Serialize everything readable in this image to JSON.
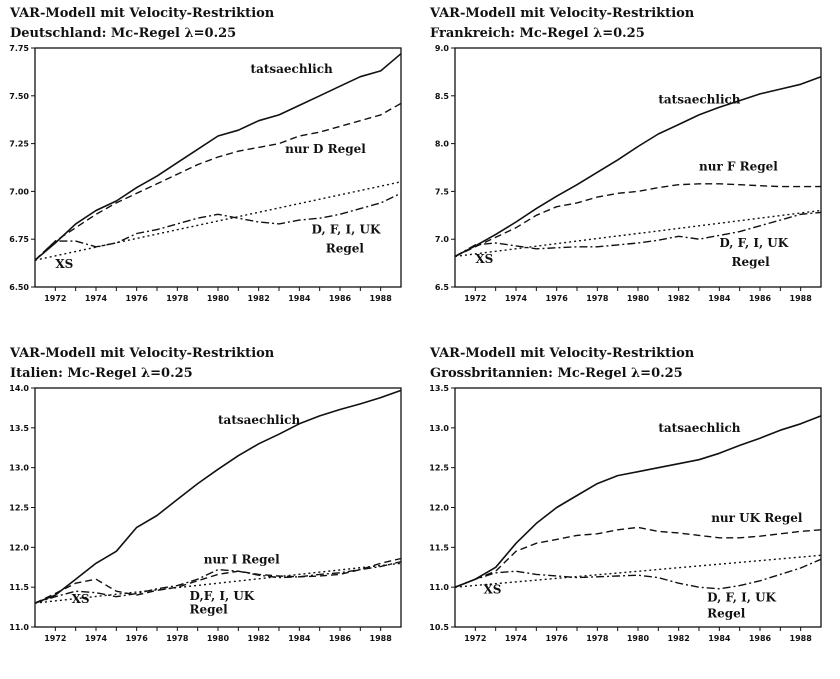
{
  "chart_data": [
    {
      "type": "line",
      "title": "VAR-Modell mit Velocity-Restriktion",
      "subtitle": "Deutschland: Mc-Regel λ=0.25",
      "xlim": [
        1971,
        1989
      ],
      "ylim": [
        6.5,
        7.75
      ],
      "xticks": [
        1972,
        1974,
        1976,
        1978,
        1980,
        1982,
        1984,
        1986,
        1988
      ],
      "yticks": [
        6.5,
        6.75,
        7.0,
        7.25,
        7.5,
        7.75
      ],
      "ytick_labels": [
        "6.50",
        "6.75",
        "7.00",
        "7.25",
        "7.50",
        "7.75"
      ],
      "grid": false,
      "annotations": [
        {
          "text": "tatsaechlich",
          "x": 1981.6,
          "y": 7.62
        },
        {
          "text": "nur D Regel",
          "x": 1983.3,
          "y": 7.2
        },
        {
          "text": "D, F, I, UK",
          "x": 1984.6,
          "y": 6.78
        },
        {
          "text": "Regel",
          "x": 1985.3,
          "y": 6.68
        },
        {
          "text": "XS",
          "x": 1972.0,
          "y": 6.6
        }
      ],
      "series": [
        {
          "style": "solid",
          "x": [
            1971,
            1972,
            1973,
            1974,
            1975,
            1976,
            1977,
            1978,
            1979,
            1980,
            1981,
            1982,
            1983,
            1984,
            1985,
            1986,
            1987,
            1988,
            1989
          ],
          "y": [
            6.64,
            6.73,
            6.83,
            6.9,
            6.95,
            7.02,
            7.08,
            7.15,
            7.22,
            7.29,
            7.32,
            7.37,
            7.4,
            7.45,
            7.5,
            7.55,
            7.6,
            7.63,
            7.72
          ]
        },
        {
          "style": "dashed",
          "x": [
            1971,
            1972,
            1973,
            1974,
            1975,
            1976,
            1977,
            1978,
            1979,
            1980,
            1981,
            1982,
            1983,
            1984,
            1985,
            1986,
            1987,
            1988,
            1989
          ],
          "y": [
            6.64,
            6.74,
            6.81,
            6.88,
            6.94,
            6.99,
            7.04,
            7.09,
            7.14,
            7.18,
            7.21,
            7.23,
            7.25,
            7.29,
            7.31,
            7.34,
            7.37,
            7.4,
            7.46
          ]
        },
        {
          "style": "dotted",
          "x": [
            1971,
            1989
          ],
          "y": [
            6.64,
            7.05
          ]
        },
        {
          "style": "dashdot",
          "x": [
            1971,
            1972,
            1973,
            1974,
            1975,
            1976,
            1977,
            1978,
            1979,
            1980,
            1981,
            1982,
            1983,
            1984,
            1985,
            1986,
            1987,
            1988,
            1989
          ],
          "y": [
            6.64,
            6.74,
            6.74,
            6.71,
            6.73,
            6.78,
            6.8,
            6.83,
            6.86,
            6.88,
            6.86,
            6.84,
            6.83,
            6.85,
            6.86,
            6.88,
            6.91,
            6.94,
            6.99
          ]
        }
      ]
    },
    {
      "type": "line",
      "title": "VAR-Modell mit Velocity-Restriktion",
      "subtitle": "Frankreich: Mc-Regel λ=0.25",
      "xlim": [
        1971,
        1989
      ],
      "ylim": [
        6.5,
        9.0
      ],
      "xticks": [
        1972,
        1974,
        1976,
        1978,
        1980,
        1982,
        1984,
        1986,
        1988
      ],
      "yticks": [
        6.5,
        7.0,
        7.5,
        8.0,
        8.5,
        9.0
      ],
      "ytick_labels": [
        "6.5",
        "7.0",
        "7.5",
        "8.0",
        "8.5",
        "9.0"
      ],
      "grid": false,
      "annotations": [
        {
          "text": "tatsaechlich",
          "x": 1981.0,
          "y": 8.42
        },
        {
          "text": "nur F Regel",
          "x": 1983.0,
          "y": 7.72
        },
        {
          "text": "D, F, I, UK",
          "x": 1984.0,
          "y": 6.92
        },
        {
          "text": "Regel",
          "x": 1984.6,
          "y": 6.72
        },
        {
          "text": "XS",
          "x": 1972.0,
          "y": 6.75
        }
      ],
      "series": [
        {
          "style": "solid",
          "x": [
            1971,
            1972,
            1973,
            1974,
            1975,
            1976,
            1977,
            1978,
            1979,
            1980,
            1981,
            1982,
            1983,
            1984,
            1985,
            1986,
            1987,
            1988,
            1989
          ],
          "y": [
            6.82,
            6.93,
            7.05,
            7.18,
            7.32,
            7.45,
            7.57,
            7.7,
            7.83,
            7.97,
            8.1,
            8.2,
            8.3,
            8.38,
            8.45,
            8.52,
            8.57,
            8.62,
            8.7
          ]
        },
        {
          "style": "dashed",
          "x": [
            1971,
            1972,
            1973,
            1974,
            1975,
            1976,
            1977,
            1978,
            1979,
            1980,
            1981,
            1982,
            1983,
            1984,
            1985,
            1986,
            1987,
            1988,
            1989
          ],
          "y": [
            6.82,
            6.92,
            7.02,
            7.12,
            7.25,
            7.34,
            7.38,
            7.44,
            7.48,
            7.5,
            7.54,
            7.57,
            7.58,
            7.58,
            7.57,
            7.56,
            7.55,
            7.55,
            7.55
          ]
        },
        {
          "style": "dotted",
          "x": [
            1971,
            1989
          ],
          "y": [
            6.82,
            7.3
          ]
        },
        {
          "style": "dashdot",
          "x": [
            1971,
            1972,
            1973,
            1974,
            1975,
            1976,
            1977,
            1978,
            1979,
            1980,
            1981,
            1982,
            1983,
            1984,
            1985,
            1986,
            1987,
            1988,
            1989
          ],
          "y": [
            6.82,
            6.94,
            6.96,
            6.93,
            6.9,
            6.91,
            6.92,
            6.92,
            6.94,
            6.96,
            6.99,
            7.03,
            7.0,
            7.04,
            7.08,
            7.14,
            7.2,
            7.26,
            7.28
          ]
        }
      ]
    },
    {
      "type": "line",
      "title": "VAR-Modell mit Velocity-Restriktion",
      "subtitle": "Italien: Mc-Regel   λ=0.25",
      "xlim": [
        1971,
        1989
      ],
      "ylim": [
        11.0,
        14.0
      ],
      "xticks": [
        1972,
        1974,
        1976,
        1978,
        1980,
        1982,
        1984,
        1986,
        1988
      ],
      "yticks": [
        11.0,
        11.5,
        12.0,
        12.5,
        13.0,
        13.5,
        14.0
      ],
      "ytick_labels": [
        "11.0",
        "11.5",
        "12.0",
        "12.5",
        "13.0",
        "13.5",
        "14.0"
      ],
      "grid": false,
      "annotations": [
        {
          "text": "tatsaechlich",
          "x": 1980.0,
          "y": 13.55
        },
        {
          "text": "nur I Regel",
          "x": 1979.3,
          "y": 11.8
        },
        {
          "text": "D,F, I, UK",
          "x": 1978.6,
          "y": 11.34
        },
        {
          "text": "Regel",
          "x": 1978.6,
          "y": 11.17
        },
        {
          "text": "XS",
          "x": 1972.8,
          "y": 11.3
        }
      ],
      "series": [
        {
          "style": "solid",
          "x": [
            1971,
            1972,
            1973,
            1974,
            1975,
            1976,
            1977,
            1978,
            1979,
            1980,
            1981,
            1982,
            1983,
            1984,
            1985,
            1986,
            1987,
            1988,
            1989
          ],
          "y": [
            11.3,
            11.4,
            11.6,
            11.8,
            11.95,
            12.25,
            12.4,
            12.6,
            12.8,
            12.98,
            13.15,
            13.3,
            13.42,
            13.55,
            13.65,
            13.73,
            13.8,
            13.88,
            13.97
          ]
        },
        {
          "style": "dashed",
          "x": [
            1971,
            1972,
            1973,
            1974,
            1975,
            1976,
            1977,
            1978,
            1979,
            1980,
            1981,
            1982,
            1983,
            1984,
            1985,
            1986,
            1987,
            1988,
            1989
          ],
          "y": [
            11.3,
            11.42,
            11.55,
            11.6,
            11.45,
            11.4,
            11.46,
            11.5,
            11.58,
            11.66,
            11.7,
            11.66,
            11.64,
            11.63,
            11.64,
            11.66,
            11.72,
            11.8,
            11.86
          ]
        },
        {
          "style": "dotted",
          "x": [
            1971,
            1989
          ],
          "y": [
            11.3,
            11.8
          ]
        },
        {
          "style": "dashdot",
          "x": [
            1971,
            1972,
            1973,
            1974,
            1975,
            1976,
            1977,
            1978,
            1979,
            1980,
            1981,
            1982,
            1983,
            1984,
            1985,
            1986,
            1987,
            1988,
            1989
          ],
          "y": [
            11.3,
            11.38,
            11.45,
            11.43,
            11.38,
            11.42,
            11.48,
            11.52,
            11.6,
            11.72,
            11.7,
            11.65,
            11.62,
            11.63,
            11.66,
            11.68,
            11.72,
            11.76,
            11.82
          ]
        }
      ]
    },
    {
      "type": "line",
      "title": "VAR-Modell mit Velocity-Restriktion",
      "subtitle": "Grossbritannien: Mc-Regel   λ=0.25",
      "xlim": [
        1971,
        1989
      ],
      "ylim": [
        10.5,
        13.5
      ],
      "xticks": [
        1972,
        1974,
        1976,
        1978,
        1980,
        1982,
        1984,
        1986,
        1988
      ],
      "yticks": [
        10.5,
        11.0,
        11.5,
        12.0,
        12.5,
        13.0,
        13.5
      ],
      "ytick_labels": [
        "10.5",
        "11.0",
        "11.5",
        "12.0",
        "12.5",
        "13.0",
        "13.5"
      ],
      "grid": false,
      "annotations": [
        {
          "text": "tatsaechlich",
          "x": 1981.0,
          "y": 12.95
        },
        {
          "text": "nur UK Regel",
          "x": 1983.6,
          "y": 11.82
        },
        {
          "text": "D, F, I, UK",
          "x": 1983.4,
          "y": 10.82
        },
        {
          "text": "Regel",
          "x": 1983.4,
          "y": 10.62
        },
        {
          "text": "XS",
          "x": 1972.4,
          "y": 10.92
        }
      ],
      "series": [
        {
          "style": "solid",
          "x": [
            1971,
            1972,
            1973,
            1974,
            1975,
            1976,
            1977,
            1978,
            1979,
            1980,
            1981,
            1982,
            1983,
            1984,
            1985,
            1986,
            1987,
            1988,
            1989
          ],
          "y": [
            11.0,
            11.1,
            11.25,
            11.55,
            11.8,
            12.0,
            12.15,
            12.3,
            12.4,
            12.45,
            12.5,
            12.55,
            12.6,
            12.68,
            12.78,
            12.87,
            12.97,
            13.05,
            13.15
          ]
        },
        {
          "style": "dashed",
          "x": [
            1971,
            1972,
            1973,
            1974,
            1975,
            1976,
            1977,
            1978,
            1979,
            1980,
            1981,
            1982,
            1983,
            1984,
            1985,
            1986,
            1987,
            1988,
            1989
          ],
          "y": [
            11.0,
            11.1,
            11.2,
            11.45,
            11.55,
            11.6,
            11.65,
            11.67,
            11.72,
            11.75,
            11.7,
            11.68,
            11.65,
            11.62,
            11.62,
            11.64,
            11.67,
            11.7,
            11.72
          ]
        },
        {
          "style": "dotted",
          "x": [
            1971,
            1989
          ],
          "y": [
            11.0,
            11.4
          ]
        },
        {
          "style": "dashdot",
          "x": [
            1971,
            1972,
            1973,
            1974,
            1975,
            1976,
            1977,
            1978,
            1979,
            1980,
            1981,
            1982,
            1983,
            1984,
            1985,
            1986,
            1987,
            1988,
            1989
          ],
          "y": [
            11.0,
            11.1,
            11.18,
            11.2,
            11.16,
            11.14,
            11.12,
            11.13,
            11.14,
            11.15,
            11.12,
            11.05,
            11.0,
            10.98,
            11.02,
            11.08,
            11.16,
            11.24,
            11.35
          ]
        }
      ]
    }
  ]
}
